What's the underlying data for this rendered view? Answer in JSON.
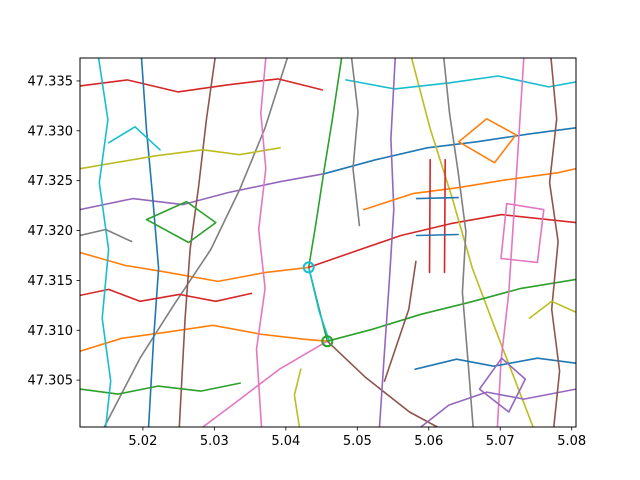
{
  "chart_data": {
    "type": "line",
    "title": "",
    "xlabel": "",
    "ylabel": "",
    "xlim": [
      5.0112,
      5.0806
    ],
    "ylim": [
      47.3003,
      47.3373
    ],
    "x_ticks": [
      {
        "value": 5.02,
        "label": "5.02"
      },
      {
        "value": 5.03,
        "label": "5.03"
      },
      {
        "value": 5.04,
        "label": "5.04"
      },
      {
        "value": 5.05,
        "label": "5.05"
      },
      {
        "value": 5.06,
        "label": "5.06"
      },
      {
        "value": 5.07,
        "label": "5.07"
      },
      {
        "value": 5.08,
        "label": "5.08"
      }
    ],
    "y_ticks": [
      {
        "value": 47.305,
        "label": "47.305"
      },
      {
        "value": 47.31,
        "label": "47.310"
      },
      {
        "value": 47.315,
        "label": "47.315"
      },
      {
        "value": 47.32,
        "label": "47.320"
      },
      {
        "value": 47.325,
        "label": "47.325"
      },
      {
        "value": 47.33,
        "label": "47.330"
      },
      {
        "value": 47.335,
        "label": "47.335"
      }
    ],
    "grid": false,
    "legend": "none",
    "palette": [
      "#1f77b4",
      "#ff7f0e",
      "#2ca02c",
      "#d62728",
      "#9467bd",
      "#8c564b",
      "#e377c2",
      "#7f7f7f",
      "#bcbd22",
      "#17becf"
    ],
    "series": [
      {
        "color_index": 2,
        "points": [
          [
            5.0458,
            47.3089
          ],
          [
            5.0432,
            47.3163
          ],
          [
            5.0442,
            47.3207
          ],
          [
            5.0453,
            47.3258
          ],
          [
            5.0465,
            47.3311
          ],
          [
            5.0478,
            47.3373
          ]
        ]
      },
      {
        "color_index": 9,
        "points": [
          [
            5.0432,
            47.3163
          ],
          [
            5.0447,
            47.3118
          ],
          [
            5.0461,
            47.3089
          ]
        ]
      },
      {
        "color_index": 1,
        "points": [
          [
            5.0112,
            47.3178
          ],
          [
            5.0175,
            47.3165
          ],
          [
            5.0235,
            47.3158
          ],
          [
            5.0305,
            47.3149
          ],
          [
            5.0372,
            47.3158
          ],
          [
            5.0432,
            47.3163
          ]
        ]
      },
      {
        "color_index": 3,
        "points": [
          [
            5.0432,
            47.3163
          ],
          [
            5.0492,
            47.3178
          ],
          [
            5.0561,
            47.3195
          ],
          [
            5.0631,
            47.3207
          ],
          [
            5.0702,
            47.3216
          ],
          [
            5.0806,
            47.3208
          ]
        ]
      },
      {
        "color_index": 4,
        "points": [
          [
            5.0112,
            47.3221
          ],
          [
            5.0186,
            47.3232
          ],
          [
            5.0256,
            47.3226
          ],
          [
            5.0319,
            47.3238
          ],
          [
            5.0392,
            47.3249
          ],
          [
            5.0454,
            47.3257
          ]
        ]
      },
      {
        "color_index": 0,
        "points": [
          [
            5.0454,
            47.3257
          ],
          [
            5.0526,
            47.3271
          ],
          [
            5.0598,
            47.3283
          ],
          [
            5.0667,
            47.3289
          ],
          [
            5.0742,
            47.3297
          ],
          [
            5.0806,
            47.3303
          ]
        ]
      },
      {
        "color_index": 5,
        "points": [
          [
            5.0458,
            47.3089
          ],
          [
            5.0511,
            47.3053
          ],
          [
            5.0573,
            47.3018
          ],
          [
            5.0612,
            47.3003
          ]
        ]
      },
      {
        "color_index": 6,
        "points": [
          [
            5.0458,
            47.3089
          ],
          [
            5.0391,
            47.3061
          ],
          [
            5.0336,
            47.3031
          ],
          [
            5.0284,
            47.3003
          ]
        ]
      },
      {
        "color_index": 7,
        "points": [
          [
            5.0146,
            47.3003
          ],
          [
            5.0196,
            47.3072
          ],
          [
            5.0243,
            47.3125
          ],
          [
            5.0295,
            47.3181
          ],
          [
            5.0336,
            47.3242
          ],
          [
            5.0371,
            47.3303
          ],
          [
            5.0402,
            47.3373
          ]
        ]
      },
      {
        "color_index": 8,
        "points": [
          [
            5.0576,
            47.3373
          ],
          [
            5.0602,
            47.3302
          ],
          [
            5.0633,
            47.3232
          ],
          [
            5.0661,
            47.3162
          ],
          [
            5.0698,
            47.3092
          ],
          [
            5.0746,
            47.3003
          ]
        ]
      },
      {
        "color_index": 1,
        "points": [
          [
            5.0112,
            47.3079
          ],
          [
            5.0171,
            47.3092
          ],
          [
            5.0232,
            47.3098
          ],
          [
            5.0298,
            47.3105
          ],
          [
            5.0366,
            47.3096
          ],
          [
            5.0425,
            47.3091
          ],
          [
            5.0458,
            47.3089
          ]
        ]
      },
      {
        "color_index": 2,
        "points": [
          [
            5.0458,
            47.3089
          ],
          [
            5.0521,
            47.3101
          ],
          [
            5.0589,
            47.3116
          ],
          [
            5.0657,
            47.3128
          ],
          [
            5.0729,
            47.3142
          ],
          [
            5.0806,
            47.3151
          ]
        ]
      },
      {
        "color_index": 3,
        "points": [
          [
            5.0112,
            47.3345
          ],
          [
            5.0178,
            47.3351
          ],
          [
            5.0249,
            47.3339
          ],
          [
            5.0318,
            47.3346
          ],
          [
            5.0389,
            47.3352
          ],
          [
            5.0451,
            47.3341
          ]
        ]
      },
      {
        "color_index": 9,
        "points": [
          [
            5.0484,
            47.3351
          ],
          [
            5.0552,
            47.3342
          ],
          [
            5.0628,
            47.3348
          ],
          [
            5.0697,
            47.3355
          ],
          [
            5.0768,
            47.3344
          ],
          [
            5.0806,
            47.3349
          ]
        ]
      },
      {
        "color_index": 0,
        "points": [
          [
            5.0198,
            47.3373
          ],
          [
            5.0205,
            47.3301
          ],
          [
            5.0214,
            47.3231
          ],
          [
            5.0222,
            47.3162
          ],
          [
            5.0215,
            47.3091
          ],
          [
            5.0208,
            47.3003
          ]
        ]
      },
      {
        "color_index": 4,
        "points": [
          [
            5.0531,
            47.3003
          ],
          [
            5.0538,
            47.3079
          ],
          [
            5.0545,
            47.3152
          ],
          [
            5.0551,
            47.3221
          ],
          [
            5.0547,
            47.3292
          ],
          [
            5.0553,
            47.3373
          ]
        ]
      },
      {
        "color_index": 6,
        "points": [
          [
            5.0696,
            47.3003
          ],
          [
            5.0701,
            47.3069
          ],
          [
            5.0712,
            47.3138
          ],
          [
            5.0718,
            47.3204
          ],
          [
            5.0724,
            47.3271
          ],
          [
            5.0733,
            47.3373
          ]
        ]
      },
      {
        "color_index": 5,
        "points": [
          [
            5.0301,
            47.3373
          ],
          [
            5.0289,
            47.3312
          ],
          [
            5.0278,
            47.3244
          ],
          [
            5.0266,
            47.3181
          ],
          [
            5.0259,
            47.3112
          ],
          [
            5.0251,
            47.3003
          ]
        ]
      },
      {
        "color_index": 7,
        "points": [
          [
            5.0621,
            47.3373
          ],
          [
            5.0629,
            47.3318
          ],
          [
            5.0641,
            47.3259
          ],
          [
            5.0652,
            47.3199
          ],
          [
            5.0647,
            47.3138
          ],
          [
            5.0655,
            47.3068
          ],
          [
            5.0662,
            47.3003
          ]
        ]
      },
      {
        "color_index": 8,
        "points": [
          [
            5.0112,
            47.3262
          ],
          [
            5.0161,
            47.3268
          ],
          [
            5.0219,
            47.3275
          ],
          [
            5.0284,
            47.3281
          ],
          [
            5.0335,
            47.3276
          ],
          [
            5.0392,
            47.3283
          ]
        ]
      },
      {
        "color_index": 1,
        "points": [
          [
            5.0509,
            47.3221
          ],
          [
            5.0578,
            47.3237
          ],
          [
            5.0642,
            47.3243
          ],
          [
            5.0709,
            47.3251
          ],
          [
            5.0781,
            47.3258
          ],
          [
            5.0806,
            47.3262
          ]
        ]
      },
      {
        "color_index": 3,
        "points": [
          [
            5.0112,
            47.3135
          ],
          [
            5.0152,
            47.3141
          ],
          [
            5.0196,
            47.3129
          ],
          [
            5.0251,
            47.3136
          ],
          [
            5.0302,
            47.3129
          ],
          [
            5.0352,
            47.3137
          ]
        ]
      },
      {
        "color_index": 0,
        "points": [
          [
            5.0581,
            47.3061
          ],
          [
            5.0639,
            47.3071
          ],
          [
            5.0691,
            47.3064
          ],
          [
            5.0752,
            47.3072
          ],
          [
            5.0806,
            47.3067
          ]
        ]
      },
      {
        "color_index": 2,
        "points": [
          [
            5.0112,
            47.3041
          ],
          [
            5.0165,
            47.3036
          ],
          [
            5.0221,
            47.3044
          ],
          [
            5.0281,
            47.3039
          ],
          [
            5.0336,
            47.3047
          ]
        ]
      },
      {
        "color_index": 4,
        "points": [
          [
            5.0589,
            47.3003
          ],
          [
            5.0628,
            47.3025
          ],
          [
            5.0681,
            47.3038
          ],
          [
            5.0733,
            47.3031
          ],
          [
            5.0806,
            47.3041
          ]
        ]
      },
      {
        "color_index": 9,
        "points": [
          [
            5.0138,
            47.3373
          ],
          [
            5.0151,
            47.3311
          ],
          [
            5.0139,
            47.3248
          ],
          [
            5.0152,
            47.3181
          ],
          [
            5.0143,
            47.3112
          ],
          [
            5.0155,
            47.3049
          ],
          [
            5.0148,
            47.3003
          ]
        ]
      },
      {
        "color_index": 6,
        "points": [
          [
            5.0372,
            47.3373
          ],
          [
            5.0365,
            47.3318
          ],
          [
            5.0372,
            47.3262
          ],
          [
            5.0362,
            47.3201
          ],
          [
            5.0371,
            47.3142
          ],
          [
            5.0359,
            47.3081
          ],
          [
            5.0366,
            47.3003
          ]
        ]
      },
      {
        "color_index": 5,
        "points": [
          [
            5.0771,
            47.3373
          ],
          [
            5.0779,
            47.3312
          ],
          [
            5.0769,
            47.3248
          ],
          [
            5.0781,
            47.3189
          ],
          [
            5.0772,
            47.3121
          ],
          [
            5.0783,
            47.3059
          ],
          [
            5.0775,
            47.3003
          ]
        ]
      },
      {
        "color_index": 7,
        "points": [
          [
            5.0492,
            47.3373
          ],
          [
            5.0501,
            47.3319
          ],
          [
            5.0494,
            47.3262
          ],
          [
            5.0503,
            47.3205
          ]
        ]
      },
      {
        "color_index": 8,
        "points": [
          [
            5.0419,
            47.3003
          ],
          [
            5.0412,
            47.3035
          ],
          [
            5.0421,
            47.3061
          ]
        ]
      },
      {
        "color_index": 3,
        "points": [
          [
            5.0601,
            47.3158
          ],
          [
            5.0602,
            47.3271
          ]
        ]
      },
      {
        "color_index": 3,
        "points": [
          [
            5.0622,
            47.3158
          ],
          [
            5.0623,
            47.3271
          ]
        ]
      },
      {
        "color_index": 0,
        "points": [
          [
            5.0583,
            47.3195
          ],
          [
            5.0641,
            47.3196
          ]
        ]
      },
      {
        "color_index": 0,
        "points": [
          [
            5.0583,
            47.3232
          ],
          [
            5.0641,
            47.3233
          ]
        ]
      },
      {
        "color_index": 6,
        "points": [
          [
            5.0701,
            47.3172
          ],
          [
            5.0752,
            47.3168
          ],
          [
            5.0761,
            47.3221
          ],
          [
            5.0709,
            47.3227
          ],
          [
            5.0701,
            47.3172
          ]
        ]
      },
      {
        "color_index": 4,
        "points": [
          [
            5.0671,
            47.3041
          ],
          [
            5.0702,
            47.3072
          ],
          [
            5.0735,
            47.3051
          ],
          [
            5.0712,
            47.3018
          ],
          [
            5.0671,
            47.3041
          ]
        ]
      },
      {
        "color_index": 2,
        "points": [
          [
            5.0205,
            47.3211
          ],
          [
            5.0261,
            47.3229
          ],
          [
            5.0302,
            47.3208
          ],
          [
            5.0264,
            47.3188
          ],
          [
            5.0205,
            47.3211
          ]
        ]
      },
      {
        "color_index": 1,
        "points": [
          [
            5.0642,
            47.3289
          ],
          [
            5.0681,
            47.3312
          ],
          [
            5.0722,
            47.3296
          ],
          [
            5.0692,
            47.3268
          ],
          [
            5.0642,
            47.3289
          ]
        ]
      },
      {
        "color_index": 9,
        "points": [
          [
            5.0152,
            47.3288
          ],
          [
            5.0189,
            47.3304
          ],
          [
            5.0224,
            47.3281
          ]
        ]
      },
      {
        "color_index": 5,
        "points": [
          [
            5.0538,
            47.3049
          ],
          [
            5.0572,
            47.3121
          ],
          [
            5.0582,
            47.3169
          ]
        ]
      },
      {
        "color_index": 7,
        "points": [
          [
            5.0112,
            47.3195
          ],
          [
            5.0148,
            47.3201
          ],
          [
            5.0184,
            47.3189
          ]
        ]
      },
      {
        "color_index": 8,
        "points": [
          [
            5.0741,
            47.3112
          ],
          [
            5.0772,
            47.3129
          ],
          [
            5.0806,
            47.3118
          ]
        ]
      }
    ],
    "markers": [
      {
        "x": 5.0432,
        "y": 47.3163,
        "color_index": 9
      },
      {
        "x": 5.0458,
        "y": 47.3089,
        "color_index": 2
      }
    ]
  }
}
